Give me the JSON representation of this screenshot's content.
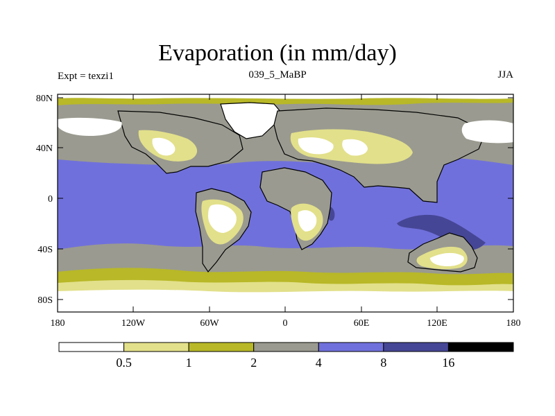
{
  "title": "Evaporation (in mm/day)",
  "left_label": "Expt = texzi1",
  "center_label": "039_5_MaBP",
  "right_label": "JJA",
  "axes": {
    "lat_ticks": [
      "80N",
      "40N",
      "0",
      "40S",
      "80S"
    ],
    "lon_ticks": [
      "180",
      "120W",
      "60W",
      "0",
      "60E",
      "120E",
      "180"
    ]
  },
  "colorbar": {
    "levels": [
      "0.5",
      "1",
      "2",
      "4",
      "8",
      "16"
    ],
    "colors": [
      "#ffffff",
      "#e2e08a",
      "#b8b828",
      "#9a9a90",
      "#7070dc",
      "#464696",
      "#000000"
    ]
  }
}
